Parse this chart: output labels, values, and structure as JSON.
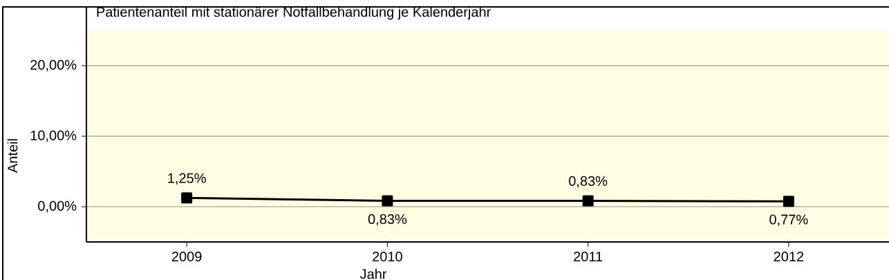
{
  "chart_data": {
    "type": "line",
    "title": "Patientenanteil mit stationärer Notfallbehandlung je Kalenderjahr",
    "xlabel": "Jahr",
    "ylabel": "Anteil",
    "categories": [
      "2009",
      "2010",
      "2011",
      "2012"
    ],
    "values": [
      1.25,
      0.83,
      0.83,
      0.77
    ],
    "color": "#000000",
    "value_labels": [
      "1,25%",
      "0,83%",
      "0,83%",
      "0,77%"
    ],
    "ylim": [
      -5,
      25
    ],
    "yticks": [
      {
        "value": 0,
        "label": "0,00%"
      },
      {
        "value": 10,
        "label": "10,00%"
      },
      {
        "value": 20,
        "label": "20,00%"
      }
    ],
    "grid": "y",
    "marker": "square",
    "line_style": "solid"
  }
}
